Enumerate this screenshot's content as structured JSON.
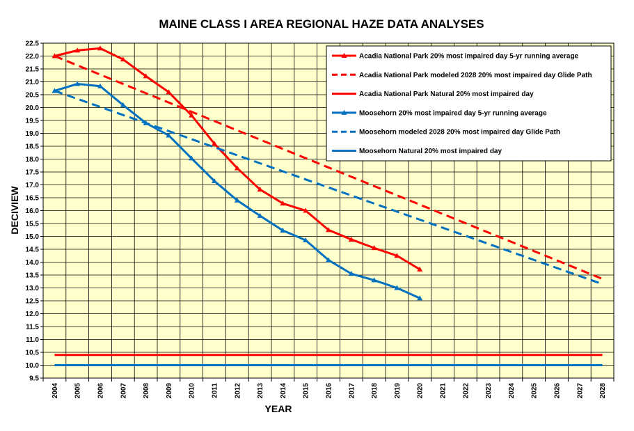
{
  "chart_data": {
    "type": "line",
    "title": "MAINE CLASS I AREA REGIONAL HAZE DATA ANALYSES",
    "xlabel": "YEAR",
    "ylabel": "DECIVIEW",
    "xlim": [
      2004,
      2028
    ],
    "ylim": [
      9.5,
      22.5
    ],
    "y_tick_step": 0.5,
    "grid": true,
    "plot_background": "#ffffcc",
    "legend_position": "top-right",
    "x": [
      2004,
      2005,
      2006,
      2007,
      2008,
      2009,
      2010,
      2011,
      2012,
      2013,
      2014,
      2015,
      2016,
      2017,
      2018,
      2019,
      2020,
      2021,
      2022,
      2023,
      2024,
      2025,
      2026,
      2027,
      2028
    ],
    "series": [
      {
        "name": "Acadia National Park 20% most impaired day 5-yr running average",
        "color": "#ff0000",
        "style": "solid",
        "marker": "triangle",
        "x": [
          2004,
          2005,
          2006,
          2007,
          2008,
          2009,
          2010,
          2011,
          2012,
          2013,
          2014,
          2015,
          2016,
          2017,
          2018,
          2019,
          2020
        ],
        "values": [
          22.0,
          22.22,
          22.3,
          21.87,
          21.22,
          20.6,
          19.7,
          18.6,
          17.65,
          16.82,
          16.28,
          16.0,
          15.25,
          14.88,
          14.55,
          14.25,
          13.72
        ]
      },
      {
        "name": "Acadia National Park modeled 2028 20% most impaired day Glide Path",
        "color": "#ff0000",
        "style": "dashed",
        "marker": "none",
        "x": [
          2004,
          2028
        ],
        "values": [
          22.0,
          13.35
        ]
      },
      {
        "name": "Acadia National Park Natural 20% most impaired day",
        "color": "#ff0000",
        "style": "solid",
        "marker": "none",
        "x": [
          2004,
          2028
        ],
        "values": [
          10.4,
          10.4
        ]
      },
      {
        "name": "Moosehorn 20% most impaired day 5-yr running average",
        "color": "#0070c0",
        "style": "solid",
        "marker": "triangle",
        "x": [
          2004,
          2005,
          2006,
          2007,
          2008,
          2009,
          2010,
          2011,
          2012,
          2013,
          2014,
          2015,
          2016,
          2017,
          2018,
          2019,
          2020
        ],
        "values": [
          20.65,
          20.92,
          20.83,
          20.1,
          19.4,
          18.92,
          18.03,
          17.15,
          16.4,
          15.8,
          15.23,
          14.85,
          14.08,
          13.55,
          13.3,
          13.0,
          12.6
        ]
      },
      {
        "name": "Moosehorn modeled 2028 20% most impaired day Glide Path",
        "color": "#0070c0",
        "style": "dashed",
        "marker": "none",
        "x": [
          2004,
          2028
        ],
        "values": [
          20.65,
          13.15
        ]
      },
      {
        "name": "Moosehorn Natural 20% most impaired day",
        "color": "#0070c0",
        "style": "solid",
        "marker": "none",
        "x": [
          2004,
          2028
        ],
        "values": [
          10.0,
          10.0
        ]
      }
    ]
  }
}
